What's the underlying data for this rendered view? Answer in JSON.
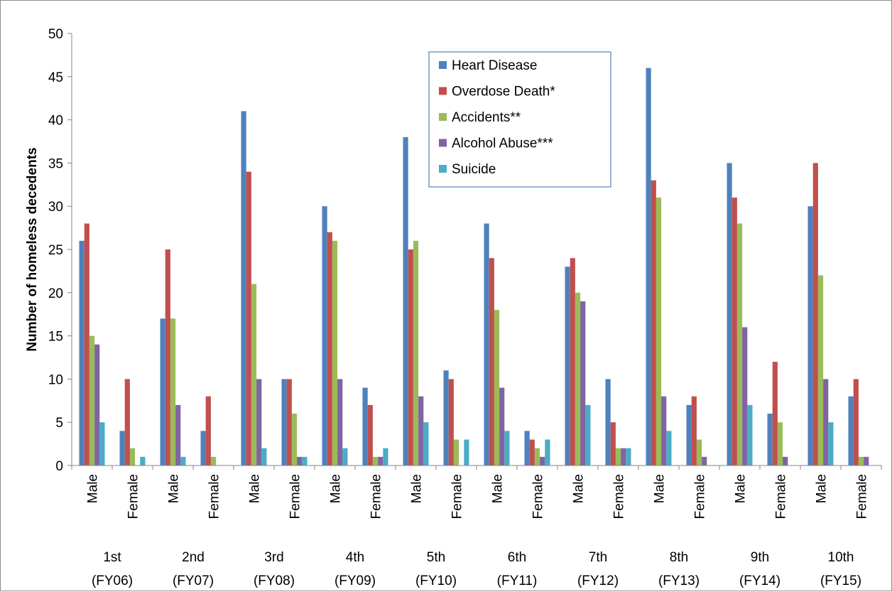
{
  "chart_data": {
    "type": "bar",
    "title": "",
    "ylabel": "Number of homeless decedents",
    "ylim": [
      0,
      50
    ],
    "y_ticks": [
      0,
      5,
      10,
      15,
      20,
      25,
      30,
      35,
      40,
      45,
      50
    ],
    "grid": false,
    "legend_position": "top-right",
    "groups": [
      {
        "line1": "1st",
        "line2": "(FY06)"
      },
      {
        "line1": "2nd",
        "line2": "(FY07)"
      },
      {
        "line1": "3rd",
        "line2": "(FY08)"
      },
      {
        "line1": "4th",
        "line2": "(FY09)"
      },
      {
        "line1": "5th",
        "line2": "(FY10)"
      },
      {
        "line1": "6th",
        "line2": "(FY11)"
      },
      {
        "line1": "7th",
        "line2": "(FY12)"
      },
      {
        "line1": "8th",
        "line2": "(FY13)"
      },
      {
        "line1": "9th",
        "line2": "(FY14)"
      },
      {
        "line1": "10th",
        "line2": "(FY15)"
      }
    ],
    "categories": [
      "Male",
      "Female",
      "Male",
      "Female",
      "Male",
      "Female",
      "Male",
      "Female",
      "Male",
      "Female",
      "Male",
      "Female",
      "Male",
      "Female",
      "Male",
      "Female",
      "Male",
      "Female",
      "Male",
      "Female"
    ],
    "series": [
      {
        "name": "Heart Disease",
        "color": "#4f81bd",
        "values": [
          26,
          4,
          17,
          4,
          41,
          10,
          30,
          9,
          38,
          11,
          28,
          4,
          23,
          10,
          46,
          7,
          35,
          6,
          30,
          8
        ]
      },
      {
        "name": "Overdose Death*",
        "color": "#c0504d",
        "values": [
          28,
          10,
          25,
          8,
          34,
          10,
          27,
          7,
          25,
          10,
          24,
          3,
          24,
          5,
          33,
          8,
          31,
          12,
          35,
          10
        ]
      },
      {
        "name": "Accidents**",
        "color": "#9bbb59",
        "values": [
          15,
          2,
          17,
          1,
          21,
          6,
          26,
          1,
          26,
          3,
          18,
          2,
          20,
          2,
          31,
          3,
          28,
          5,
          22,
          1
        ]
      },
      {
        "name": "Alcohol Abuse***",
        "color": "#8064a2",
        "values": [
          14,
          0,
          7,
          0,
          10,
          1,
          10,
          1,
          8,
          0,
          9,
          1,
          19,
          2,
          8,
          1,
          16,
          1,
          10,
          1
        ]
      },
      {
        "name": "Suicide",
        "color": "#4bacc6",
        "values": [
          5,
          1,
          1,
          0,
          2,
          1,
          2,
          2,
          5,
          3,
          4,
          3,
          7,
          2,
          4,
          0,
          7,
          0,
          5,
          0
        ]
      }
    ]
  }
}
